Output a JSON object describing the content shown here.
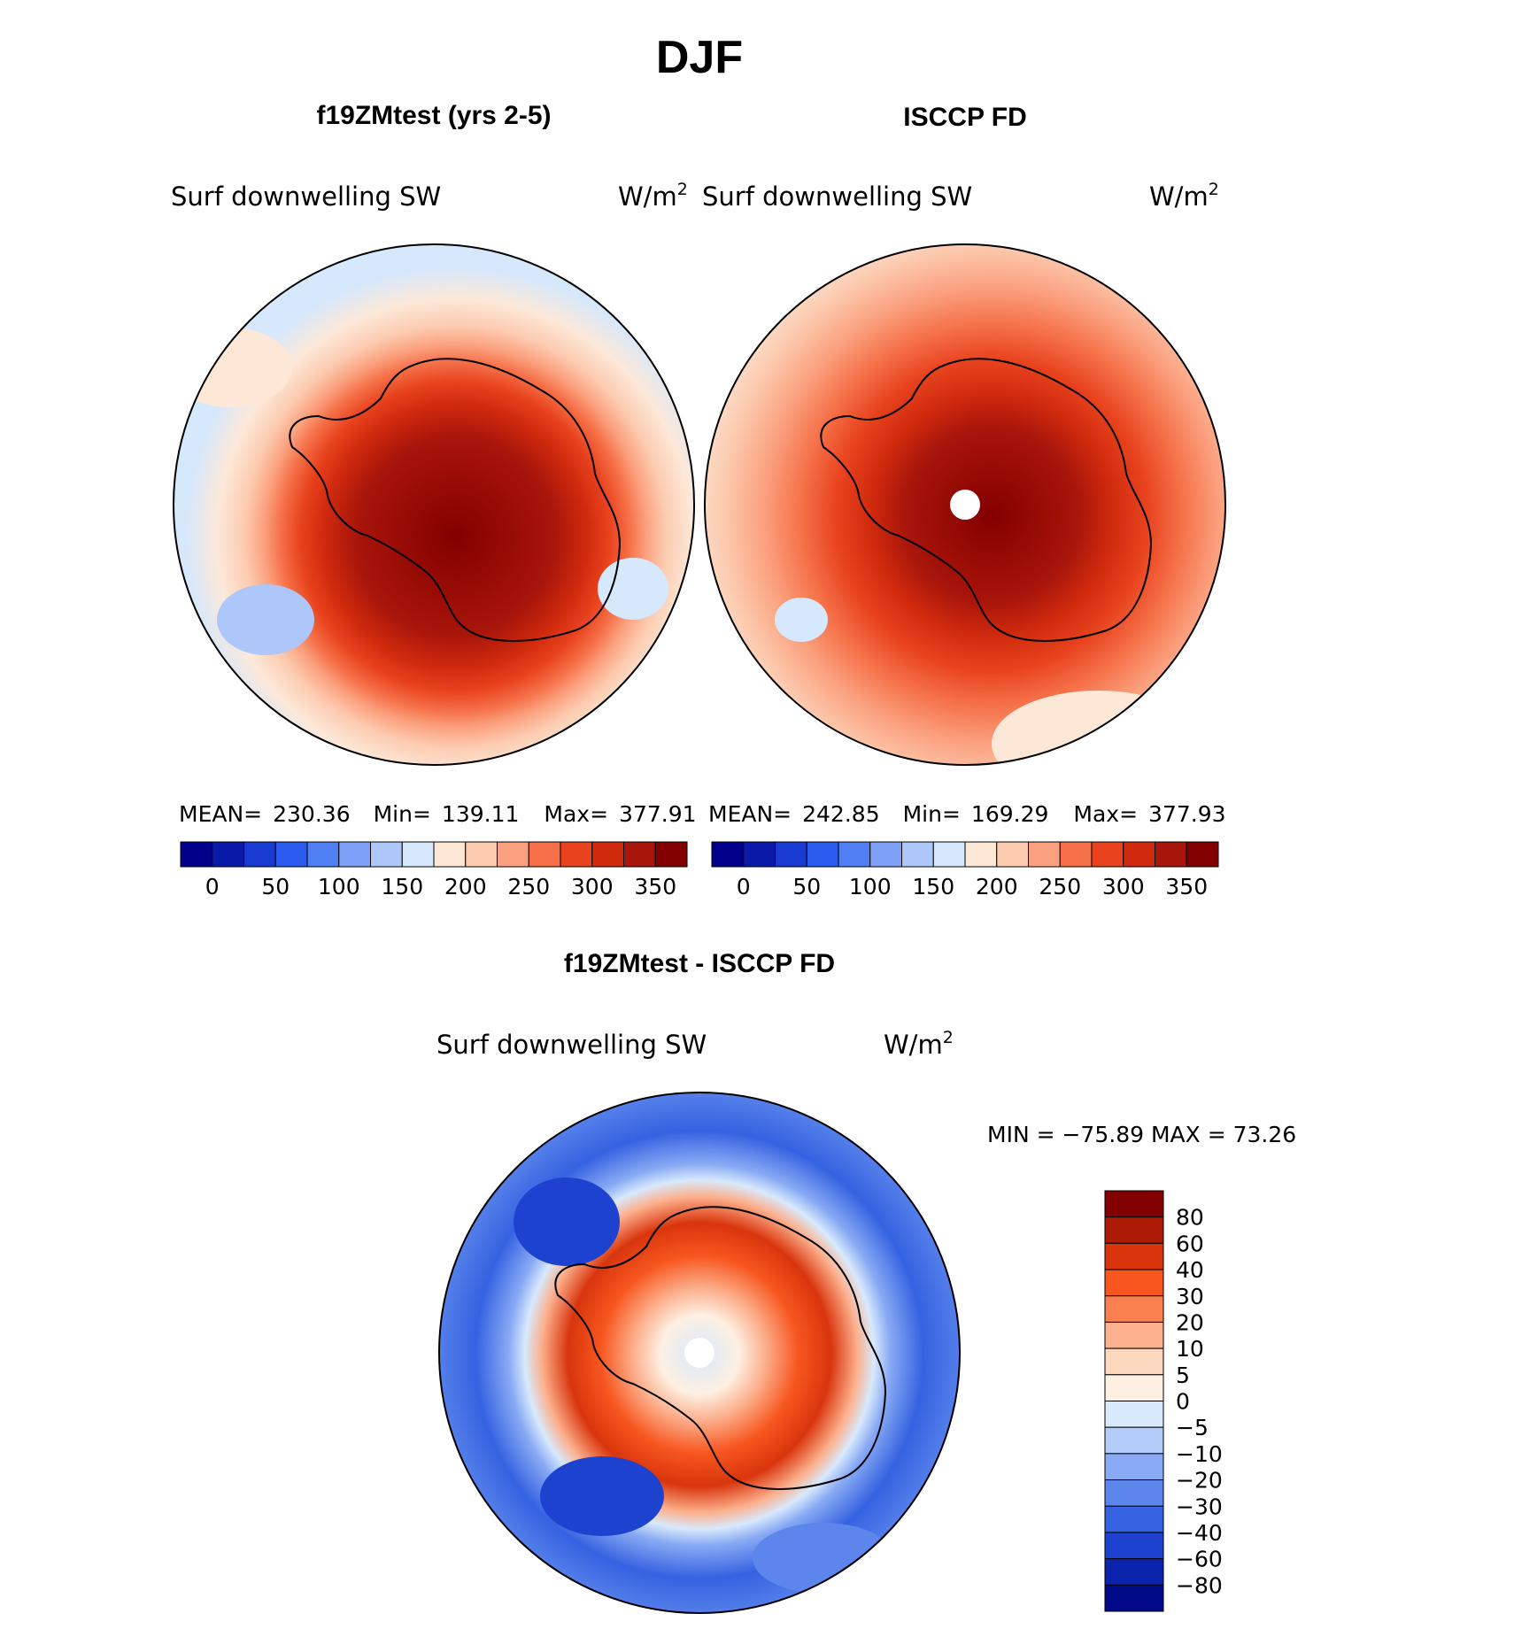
{
  "title": "DJF",
  "panels": [
    {
      "id": "model",
      "title": "f19ZMtest (yrs 2-5)",
      "variable": "Surf downwelling SW",
      "units": "W/m",
      "units_sup": "2",
      "stats": {
        "mean_label": "MEAN=",
        "mean": "230.36",
        "min_label": "Min=",
        "min": "139.11",
        "max_label": "Max=",
        "max": "377.91"
      }
    },
    {
      "id": "obs",
      "title": "ISCCP FD",
      "variable": "Surf downwelling SW",
      "units": "W/m",
      "units_sup": "2",
      "stats": {
        "mean_label": "MEAN=",
        "mean": "242.85",
        "min_label": "Min=",
        "min": "169.29",
        "max_label": "Max=",
        "max": "377.93"
      }
    },
    {
      "id": "diff",
      "title": "f19ZMtest - ISCCP FD",
      "variable": "Surf downwelling SW",
      "units": "W/m",
      "units_sup": "2",
      "stats_line": "MIN = −75.89 MAX =   73.26"
    }
  ],
  "chart_data": [
    {
      "type": "heatmap",
      "projection": "south polar stereographic",
      "title": "f19ZMtest (yrs 2-5)",
      "variable": "Surf downwelling SW",
      "units": "W/m2",
      "mean": 230.36,
      "min": 139.11,
      "max": 377.91,
      "colorbar": {
        "tick_labels": [
          "0",
          "50",
          "100",
          "150",
          "200",
          "250",
          "300",
          "350"
        ],
        "levels": [
          0,
          25,
          50,
          75,
          100,
          125,
          150,
          175,
          200,
          225,
          250,
          275,
          300,
          325,
          350,
          375
        ],
        "colors": [
          "#00008a",
          "#0a1aa8",
          "#1a3bd1",
          "#2c5bf0",
          "#4f7ff2",
          "#7ea0f6",
          "#adc7fb",
          "#d6e8fc",
          "#fde8d8",
          "#fccbb0",
          "#fba07e",
          "#f57048",
          "#e8431e",
          "#d02a0e",
          "#a8150a",
          "#830000"
        ]
      }
    },
    {
      "type": "heatmap",
      "projection": "south polar stereographic",
      "title": "ISCCP FD",
      "variable": "Surf downwelling SW",
      "units": "W/m2",
      "mean": 242.85,
      "min": 169.29,
      "max": 377.93,
      "colorbar": {
        "tick_labels": [
          "0",
          "50",
          "100",
          "150",
          "200",
          "250",
          "300",
          "350"
        ],
        "levels": [
          0,
          25,
          50,
          75,
          100,
          125,
          150,
          175,
          200,
          225,
          250,
          275,
          300,
          325,
          350,
          375
        ],
        "colors": [
          "#00008a",
          "#0a1aa8",
          "#1a3bd1",
          "#2c5bf0",
          "#4f7ff2",
          "#7ea0f6",
          "#adc7fb",
          "#d6e8fc",
          "#fde8d8",
          "#fccbb0",
          "#fba07e",
          "#f57048",
          "#e8431e",
          "#d02a0e",
          "#a8150a",
          "#830000"
        ]
      }
    },
    {
      "type": "heatmap",
      "projection": "south polar stereographic",
      "title": "f19ZMtest - ISCCP FD",
      "variable": "Surf downwelling SW",
      "units": "W/m2",
      "min": -75.89,
      "max": 73.26,
      "colorbar": {
        "orientation": "vertical",
        "tick_labels": [
          "80",
          "60",
          "40",
          "30",
          "20",
          "10",
          "5",
          "0",
          "−5",
          "−10",
          "−20",
          "−30",
          "−40",
          "−60",
          "−80"
        ],
        "levels": [
          80,
          60,
          40,
          30,
          20,
          10,
          5,
          0,
          -5,
          -10,
          -20,
          -30,
          -40,
          -60,
          -80
        ],
        "colors_top_to_bottom": [
          "#830000",
          "#ad1a05",
          "#d9350d",
          "#f7561f",
          "#fa8050",
          "#fcb08d",
          "#fcd8bf",
          "#fdf0e2",
          "#d8e9fc",
          "#b2cdfa",
          "#88aaf4",
          "#5c86ec",
          "#3562e1",
          "#1c42cf",
          "#0b24ae",
          "#000a88"
        ]
      }
    }
  ],
  "colors": {
    "land_outline": "#000000",
    "pole_hole": "#ffffff",
    "frame": "#000000"
  }
}
